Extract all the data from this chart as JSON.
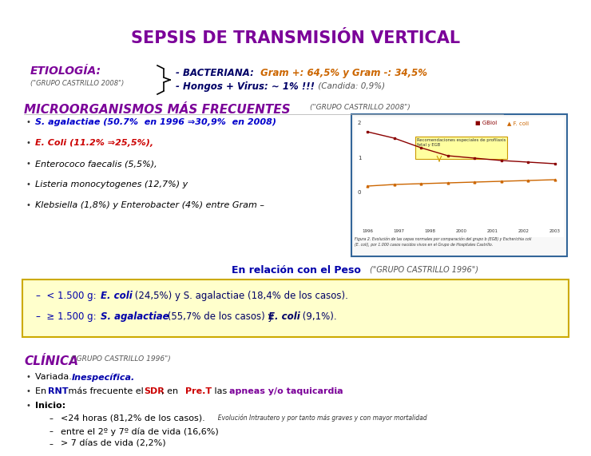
{
  "title": "SEPSIS DE TRANSMISIÓN VERTICAL",
  "title_color": "#7b0099",
  "bg_color": "#ffffff",
  "etiology_label": "ETIOLOGÍA:",
  "etiology_sublabel": "(\"GRUPO CASTRILLO 2008\")",
  "micro_title": "MICROORGANISMOS MÁS FRECUENTES",
  "micro_subtitle": "(\"GRUPO CASTRILLO 2008\")",
  "bullets": [
    "S. agalactiae (50.7%  en 1996 ⇒30,9%  en 2008)",
    "E. Coli (11.2% ⇒25,5%),",
    "Enterococo faecalis (5,5%),",
    "Listeria monocytogenes (12,7%) y",
    "Klebsiella (1,8%) y Enterobacter (4%) entre Gram –"
  ],
  "bullet_colors": [
    "#0000cc",
    "#cc0000",
    "#000000",
    "#000000",
    "#000000"
  ],
  "peso_label": "En relación con el Peso",
  "peso_sublabel": "(\"GRUPO CASTRILLO 1996\")",
  "box_bg": "#ffffcc",
  "box_border": "#ccaa00",
  "clinica_title": "CLÍNICA",
  "clinica_subtitle": "(\"GRUPO CASTRILLO 1996\")",
  "inicio_sub": [
    "<24 horas (81,2% de los casos).",
    "entre el 2º y 7º día de vida (16,6%)",
    "> 7 días de vida (2,2%)"
  ],
  "inicio_small": "Evolución Intrautero y por tanto más graves y con mayor mortalidad"
}
